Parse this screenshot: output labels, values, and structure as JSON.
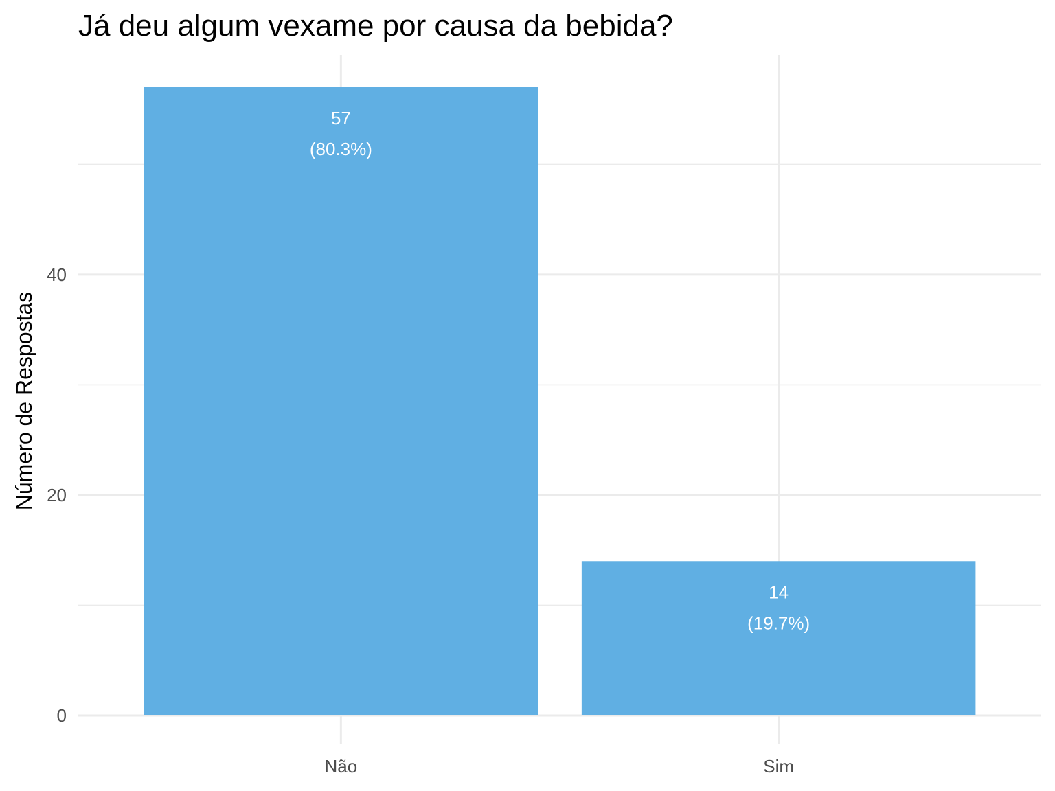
{
  "chart_data": {
    "type": "bar",
    "title": "Já deu algum vexame por causa da bebida?",
    "xlabel": "",
    "ylabel": "Número de Respostas",
    "categories": [
      "Não",
      "Sim"
    ],
    "values": [
      57,
      14
    ],
    "bar_labels": [
      {
        "count": "57",
        "percent": "(80.3%)"
      },
      {
        "count": "14",
        "percent": "(19.7%)"
      }
    ],
    "ylim": [
      0,
      57
    ],
    "y_ticks": [
      0,
      20,
      40
    ],
    "y_tick_labels": [
      "0",
      "20",
      "40"
    ],
    "y_minor_ticks": [
      10,
      30,
      50
    ],
    "grid": true,
    "legend": "none",
    "colors": {
      "bar": "#5dade2",
      "grid": "#ebebeb",
      "tick_text": "#4d4d4d"
    }
  }
}
